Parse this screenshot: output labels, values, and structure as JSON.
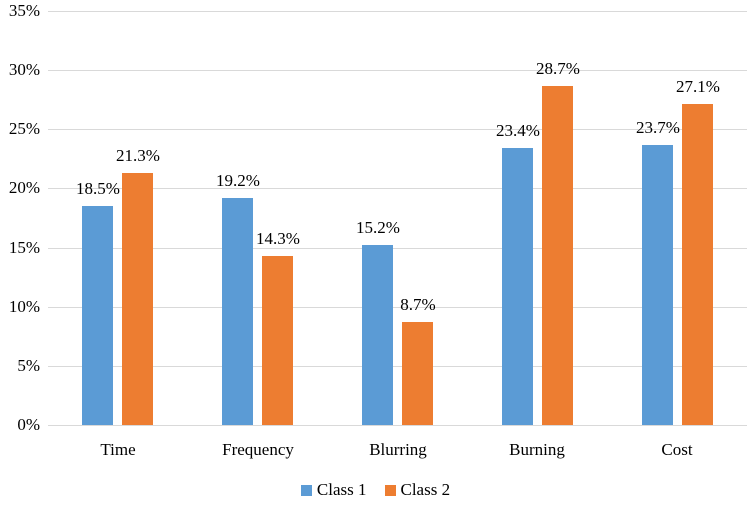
{
  "chart_data": {
    "type": "bar",
    "title": "",
    "xlabel": "",
    "ylabel": "",
    "categories": [
      "Time",
      "Frequency",
      "Blurring",
      "Burning",
      "Cost"
    ],
    "series": [
      {
        "name": "Class 1",
        "color": "#5B9BD5",
        "values": [
          18.5,
          19.2,
          15.2,
          23.4,
          23.7
        ],
        "labels": [
          "18.5%",
          "19.2%",
          "15.2%",
          "23.4%",
          "23.7%"
        ]
      },
      {
        "name": "Class 2",
        "color": "#ED7D31",
        "values": [
          21.3,
          14.3,
          8.7,
          28.7,
          27.1
        ],
        "labels": [
          "21.3%",
          "14.3%",
          "8.7%",
          "28.7%",
          "27.1%"
        ]
      }
    ],
    "ylim": [
      0,
      35
    ],
    "ytick_step": 5,
    "ytick_labels": [
      "0%",
      "5%",
      "10%",
      "15%",
      "20%",
      "25%",
      "30%",
      "35%"
    ],
    "grid": true,
    "legend_position": "bottom",
    "legend_entries": [
      "Class 1",
      "Class 2"
    ],
    "background_color": "#FFFFFF",
    "gridline_color": "#D9D9D9",
    "text_color": "#000000"
  }
}
